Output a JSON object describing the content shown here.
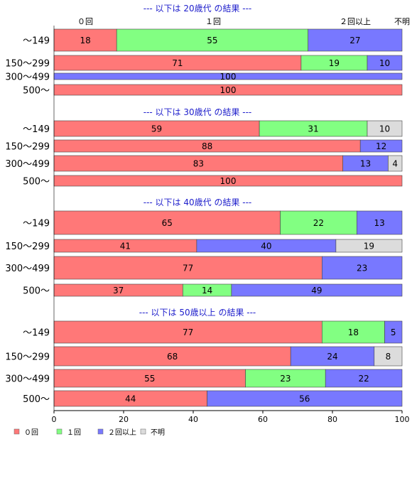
{
  "chart_data": {
    "type": "bar",
    "orientation": "horizontal-stacked",
    "xlim": [
      0,
      100
    ],
    "x_ticks": [
      "0",
      "20",
      "40",
      "60",
      "80",
      "100"
    ],
    "top_labels": [
      "０回",
      "１回",
      "２回以上",
      "不明"
    ],
    "legend": {
      "placement": "bottom-left",
      "items": [
        {
          "label": "０回",
          "color": "#ff7878"
        },
        {
          "label": "１回",
          "color": "#82ff82"
        },
        {
          "label": "２回以上",
          "color": "#7878ff"
        },
        {
          "label": "不明",
          "color": "#dcdcdc"
        }
      ]
    },
    "colors": [
      "#ff7878",
      "#82ff82",
      "#7878ff",
      "#dcdcdc"
    ],
    "groups": [
      {
        "title": "--- 以下は 20歳代 の結果 ---",
        "categories": [
          "～149",
          "150～299",
          "300～499",
          "500～"
        ],
        "rows": [
          {
            "values": [
              18,
              55,
              27,
              0
            ],
            "labels": [
              "18",
              "55",
              "27",
              ""
            ]
          },
          {
            "values": [
              71,
              19,
              10,
              0
            ],
            "labels": [
              "71",
              "19",
              "10",
              ""
            ]
          },
          {
            "values": [
              0,
              0,
              100,
              0
            ],
            "labels": [
              "",
              "",
              "100",
              ""
            ]
          },
          {
            "values": [
              100,
              0,
              0,
              0
            ],
            "labels": [
              "100",
              "",
              "",
              ""
            ]
          }
        ]
      },
      {
        "title": "--- 以下は 30歳代 の結果 ---",
        "categories": [
          "～149",
          "150～299",
          "300～499",
          "500～"
        ],
        "rows": [
          {
            "values": [
              59,
              31,
              0,
              10
            ],
            "labels": [
              "59",
              "31",
              "",
              "10"
            ]
          },
          {
            "values": [
              88,
              0,
              12,
              0
            ],
            "labels": [
              "88",
              "",
              "12",
              ""
            ]
          },
          {
            "values": [
              83,
              0,
              13,
              4
            ],
            "labels": [
              "83",
              "",
              "13",
              "4"
            ]
          },
          {
            "values": [
              100,
              0,
              0,
              0
            ],
            "labels": [
              "100",
              "",
              "",
              ""
            ]
          }
        ]
      },
      {
        "title": "--- 以下は 40歳代 の結果 ---",
        "categories": [
          "～149",
          "150～299",
          "300～499",
          "500～"
        ],
        "rows": [
          {
            "values": [
              65,
              22,
              13,
              0
            ],
            "labels": [
              "65",
              "22",
              "13",
              ""
            ]
          },
          {
            "values": [
              41,
              0,
              40,
              19
            ],
            "labels": [
              "41",
              "",
              "40",
              "19"
            ]
          },
          {
            "values": [
              77,
              0,
              23,
              0
            ],
            "labels": [
              "77",
              "",
              "23",
              ""
            ]
          },
          {
            "values": [
              37,
              14,
              49,
              0
            ],
            "labels": [
              "37",
              "14",
              "49",
              ""
            ]
          }
        ]
      },
      {
        "title": "--- 以下は 50歳以上 の結果 ---",
        "categories": [
          "～149",
          "150～299",
          "300～499",
          "500～"
        ],
        "rows": [
          {
            "values": [
              77,
              18,
              5,
              0
            ],
            "labels": [
              "77",
              "18",
              "5",
              ""
            ]
          },
          {
            "values": [
              68,
              0,
              24,
              8
            ],
            "labels": [
              "68",
              "",
              "24",
              "8"
            ]
          },
          {
            "values": [
              55,
              23,
              22,
              0
            ],
            "labels": [
              "55",
              "23",
              "22",
              ""
            ]
          },
          {
            "values": [
              44,
              0,
              56,
              0
            ],
            "labels": [
              "44",
              "",
              "56",
              ""
            ]
          }
        ]
      }
    ]
  }
}
